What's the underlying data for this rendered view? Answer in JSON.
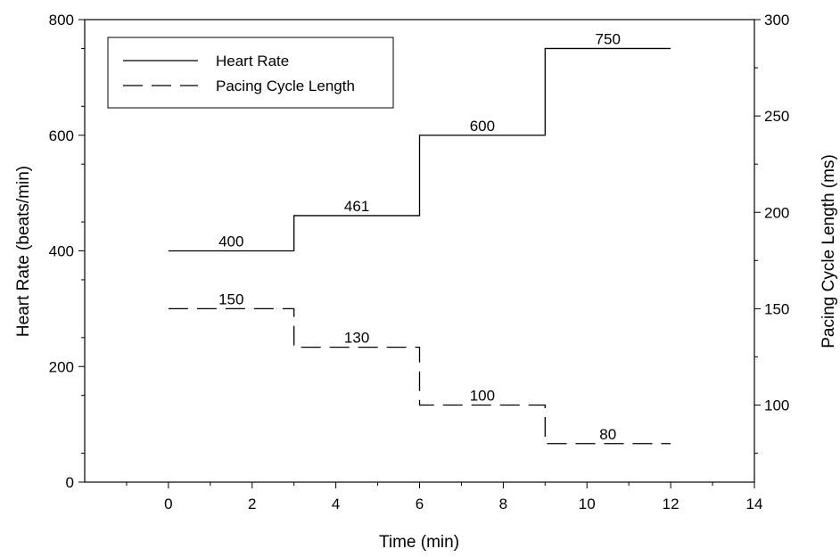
{
  "chart_data": {
    "type": "line",
    "xlabel": "Time (min)",
    "ylabel": "Heart Rate (beats/min)",
    "y2label": "Pacing Cycle Length (ms)",
    "xlim": [
      -2,
      14
    ],
    "ylim": [
      0,
      800
    ],
    "y2lim": [
      60,
      300
    ],
    "x_ticks": [
      "0",
      "2",
      "4",
      "6",
      "8",
      "10",
      "12",
      "14"
    ],
    "y_ticks": [
      "0",
      "200",
      "400",
      "600",
      "800"
    ],
    "y2_ticks": [
      "100",
      "150",
      "200",
      "250",
      "300"
    ],
    "legend_position": "top-left",
    "series": [
      {
        "name": "Heart Rate",
        "axis": "left",
        "style": "solid",
        "segments": [
          {
            "x0": 0,
            "x1": 3,
            "y": 400,
            "label": "400"
          },
          {
            "x0": 3,
            "x1": 6,
            "y": 461,
            "label": "461"
          },
          {
            "x0": 6,
            "x1": 9,
            "y": 600,
            "label": "600"
          },
          {
            "x0": 9,
            "x1": 12,
            "y": 750,
            "label": "750"
          }
        ]
      },
      {
        "name": "Pacing Cycle Length",
        "axis": "right",
        "style": "dashed",
        "segments": [
          {
            "x0": 0,
            "x1": 3,
            "y": 150,
            "label": "150"
          },
          {
            "x0": 3,
            "x1": 6,
            "y": 130,
            "label": "130"
          },
          {
            "x0": 6,
            "x1": 9,
            "y": 100,
            "label": "100"
          },
          {
            "x0": 9,
            "x1": 12,
            "y": 80,
            "label": "80"
          }
        ]
      }
    ]
  }
}
